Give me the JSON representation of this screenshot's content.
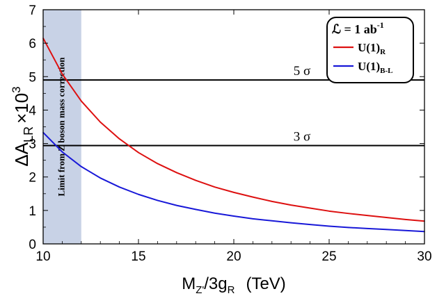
{
  "chart_data": {
    "type": "line",
    "xlabel": {
      "main": "M",
      "sub1": "Z'",
      "mid": "/3g",
      "sub2": "R",
      "units": "(TeV)"
    },
    "ylabel": {
      "main": "ΔA",
      "sub": "LR",
      "mult": "×10",
      "sup": "3"
    },
    "xlim": [
      10,
      30
    ],
    "ylim": [
      0,
      7
    ],
    "xticks": [
      10,
      15,
      20,
      25,
      30
    ],
    "yticks": [
      0,
      1,
      2,
      3,
      4,
      5,
      6,
      7
    ],
    "shaded_region": {
      "x": [
        10,
        12
      ],
      "label": "Limit from Z boson mass correction",
      "color": "#c8d2e6"
    },
    "thresholds": [
      {
        "label": "5 σ",
        "y": 4.9
      },
      {
        "label": "3 σ",
        "y": 2.94
      }
    ],
    "legend": {
      "title_prefix": "ℒ = 1 ",
      "title_unit": "ab",
      "title_sup": "-1",
      "position": "top-right"
    },
    "series": [
      {
        "name": "U(1)",
        "name_sub": "R",
        "color": "#dd1010",
        "x": [
          10,
          11,
          12,
          13,
          14,
          15,
          16,
          17,
          18,
          19,
          20,
          21,
          22,
          23,
          24,
          25,
          26,
          27,
          28,
          29,
          30
        ],
        "y": [
          6.15,
          5.08,
          4.27,
          3.64,
          3.14,
          2.73,
          2.4,
          2.13,
          1.9,
          1.7,
          1.54,
          1.4,
          1.27,
          1.16,
          1.07,
          0.98,
          0.91,
          0.85,
          0.79,
          0.73,
          0.68
        ]
      },
      {
        "name": "U(1)",
        "name_sub": "B-L",
        "color": "#1818d8",
        "x": [
          10,
          11,
          12,
          13,
          14,
          15,
          16,
          17,
          18,
          19,
          20,
          21,
          22,
          23,
          24,
          25,
          26,
          27,
          28,
          29,
          30
        ],
        "y": [
          3.33,
          2.75,
          2.31,
          1.97,
          1.7,
          1.48,
          1.3,
          1.15,
          1.03,
          0.92,
          0.83,
          0.75,
          0.69,
          0.63,
          0.58,
          0.53,
          0.49,
          0.46,
          0.43,
          0.4,
          0.37
        ]
      }
    ]
  }
}
